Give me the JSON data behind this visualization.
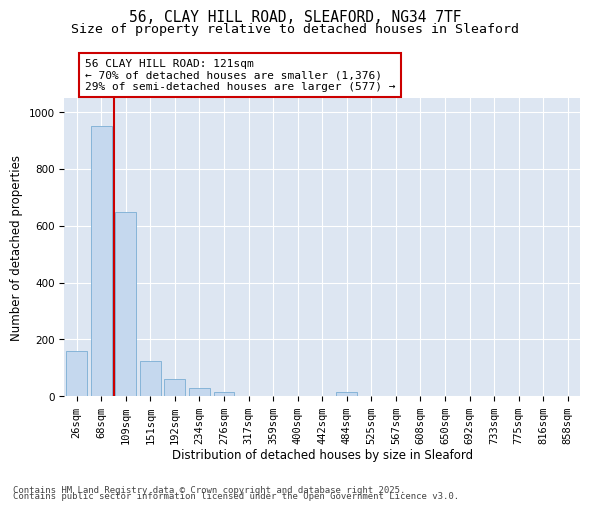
{
  "title_line1": "56, CLAY HILL ROAD, SLEAFORD, NG34 7TF",
  "title_line2": "Size of property relative to detached houses in Sleaford",
  "xlabel": "Distribution of detached houses by size in Sleaford",
  "ylabel": "Number of detached properties",
  "bar_color": "#c5d8ee",
  "bar_edge_color": "#7aadd4",
  "background_color": "#dde6f2",
  "categories": [
    "26sqm",
    "68sqm",
    "109sqm",
    "151sqm",
    "192sqm",
    "234sqm",
    "276sqm",
    "317sqm",
    "359sqm",
    "400sqm",
    "442sqm",
    "484sqm",
    "525sqm",
    "567sqm",
    "608sqm",
    "650sqm",
    "692sqm",
    "733sqm",
    "775sqm",
    "816sqm",
    "858sqm"
  ],
  "values": [
    160,
    950,
    650,
    125,
    60,
    30,
    15,
    0,
    0,
    0,
    0,
    15,
    0,
    0,
    0,
    0,
    0,
    0,
    0,
    0,
    0
  ],
  "ylim": [
    0,
    1050
  ],
  "yticks": [
    0,
    200,
    400,
    600,
    800,
    1000
  ],
  "annotation_text": "56 CLAY HILL ROAD: 121sqm\n← 70% of detached houses are smaller (1,376)\n29% of semi-detached houses are larger (577) →",
  "vline_x": 1.5,
  "box_color": "#cc0000",
  "footer_line1": "Contains HM Land Registry data © Crown copyright and database right 2025.",
  "footer_line2": "Contains public sector information licensed under the Open Government Licence v3.0.",
  "grid_color": "#ffffff",
  "title_fontsize": 10.5,
  "subtitle_fontsize": 9.5,
  "axis_label_fontsize": 8.5,
  "tick_fontsize": 7.5,
  "annotation_fontsize": 8,
  "footer_fontsize": 6.5
}
